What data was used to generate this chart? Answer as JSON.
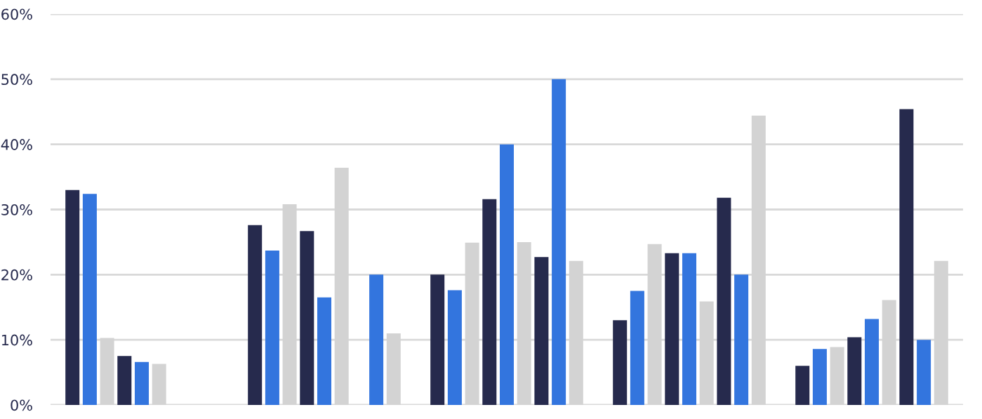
{
  "chart_data": {
    "type": "bar",
    "categories": [
      null,
      null,
      null,
      null,
      null
    ],
    "series": [
      {
        "color": "#262a4d",
        "values": [
          33.0,
          27.6,
          20.0,
          13.0,
          6.0
        ]
      },
      {
        "color": "#3375de",
        "values": [
          32.4,
          23.7,
          17.6,
          17.5,
          8.6
        ]
      },
      {
        "color": "#d3d3d3",
        "values": [
          10.3,
          30.8,
          24.9,
          24.7,
          8.9
        ]
      },
      {
        "color": "#262a4d",
        "values": [
          7.5,
          26.7,
          31.6,
          23.3,
          10.4
        ]
      },
      {
        "color": "#3375de",
        "values": [
          6.6,
          16.5,
          40.0,
          23.3,
          13.2
        ]
      },
      {
        "color": "#d3d3d3",
        "values": [
          6.3,
          36.4,
          25.0,
          15.9,
          16.1
        ]
      },
      {
        "color": "#262a4d",
        "values": [
          null,
          null,
          22.7,
          31.8,
          45.4
        ]
      },
      {
        "color": "#3375de",
        "values": [
          null,
          20.0,
          50.0,
          20.0,
          10.0
        ]
      },
      {
        "color": "#d3d3d3",
        "values": [
          null,
          11.0,
          22.1,
          44.4,
          22.1
        ]
      }
    ],
    "ylim": [
      0,
      60
    ],
    "yticks": [
      {
        "value": 0,
        "label": "0%"
      },
      {
        "value": 10,
        "label": "10%"
      },
      {
        "value": 20,
        "label": "20%"
      },
      {
        "value": 30,
        "label": "30%"
      },
      {
        "value": 40,
        "label": "40%"
      },
      {
        "value": 50,
        "label": "50%"
      },
      {
        "value": 60,
        "label": "60%"
      }
    ],
    "grid": "y",
    "legend": false
  }
}
